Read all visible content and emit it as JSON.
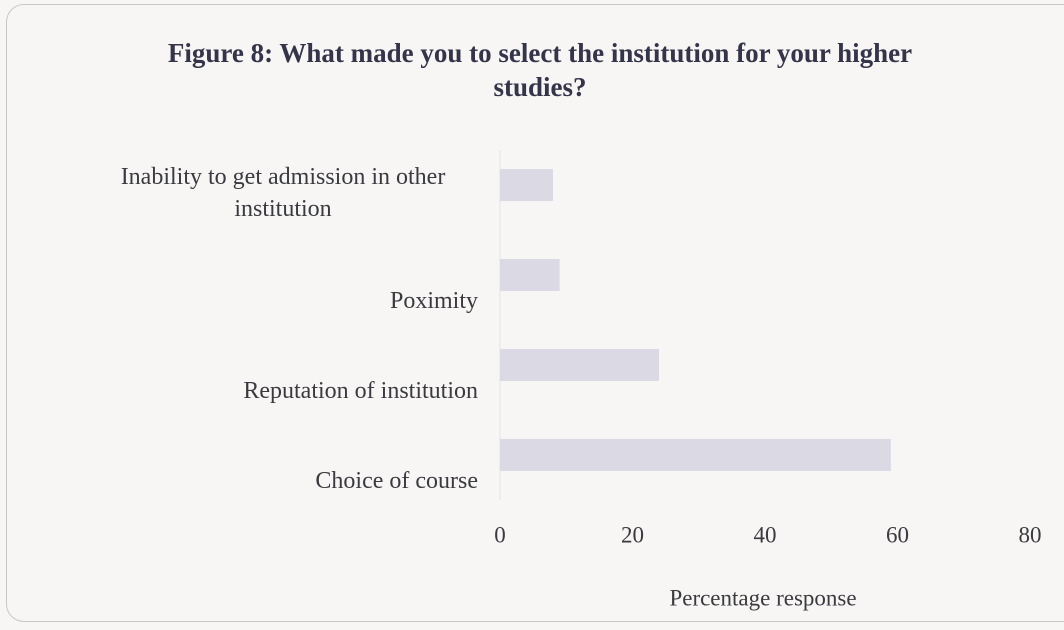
{
  "chart_data": {
    "type": "bar",
    "orientation": "horizontal",
    "title": "Figure 8: What made you to select the institution for your higher studies?",
    "categories": [
      "Inability to get admission in other institution",
      "Poximity",
      "Reputation of institution",
      "Choice of course"
    ],
    "values": [
      8,
      9,
      24,
      59
    ],
    "color": "#dbd9e4",
    "xlabel": "Percentage response",
    "xlim": [
      0,
      80
    ],
    "xticks": [
      0,
      20,
      40,
      60,
      80
    ],
    "grid": false
  }
}
